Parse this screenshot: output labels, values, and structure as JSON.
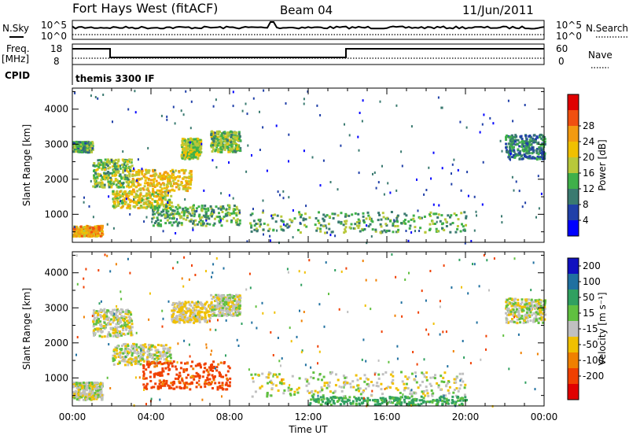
{
  "header": {
    "title": "Fort Hays West (fitACF)",
    "beam": "Beam 04",
    "date": "11/Jun/2011"
  },
  "aux": {
    "nsky_label": "N.Sky",
    "nsky_ticks": [
      "10^5",
      "10^0"
    ],
    "nsearch_label": "N.Search",
    "nsearch_ticks": [
      "10^5",
      "10^0"
    ],
    "freq_label": "Freq.",
    "freq_unit": "[MHz]",
    "freq_ticks": [
      "18",
      "8"
    ],
    "nave_label": "Nave",
    "nave_ticks": [
      "60",
      "0"
    ],
    "cpid_label": "CPID",
    "cpid_value": "themis 3300 IF"
  },
  "chart_data": [
    {
      "type": "heatmap",
      "name": "power",
      "xlabel": "",
      "ylabel": "Slant Range [km]",
      "ylim": [
        200,
        4600
      ],
      "yticks": [
        "1000",
        "2000",
        "3000",
        "4000"
      ],
      "xlim": [
        0,
        24
      ],
      "xticks": [
        "00:00",
        "04:00",
        "08:00",
        "12:00",
        "16:00",
        "20:00",
        "00:00"
      ],
      "colorbar": {
        "label": "Power [dB]",
        "ticks": [
          "4",
          "8",
          "12",
          "16",
          "20",
          "24",
          "28"
        ],
        "colors": [
          "#0000ff",
          "#2040a8",
          "#3a7a70",
          "#3fb04a",
          "#b8c83a",
          "#f0c000",
          "#f39a10",
          "#f05010",
          "#e00000"
        ]
      },
      "echo_regions": [
        {
          "t": [
            0.0,
            1.5
          ],
          "range": [
            400,
            700
          ],
          "level": 22
        },
        {
          "t": [
            0.0,
            1.0
          ],
          "range": [
            2800,
            3100
          ],
          "level": 10
        },
        {
          "t": [
            1.0,
            3.0
          ],
          "range": [
            1800,
            2600
          ],
          "level": 14
        },
        {
          "t": [
            2.0,
            5.0
          ],
          "range": [
            1200,
            1700
          ],
          "level": 18
        },
        {
          "t": [
            3.0,
            6.0
          ],
          "range": [
            1700,
            2300
          ],
          "level": 20
        },
        {
          "t": [
            4.0,
            8.5
          ],
          "range": [
            700,
            1300
          ],
          "level": 12
        },
        {
          "t": [
            5.5,
            6.5
          ],
          "range": [
            2600,
            3200
          ],
          "level": 16
        },
        {
          "t": [
            7.0,
            8.5
          ],
          "range": [
            2800,
            3400
          ],
          "level": 14
        },
        {
          "t": [
            9.0,
            20.0
          ],
          "range": [
            500,
            1100
          ],
          "level": 12
        },
        {
          "t": [
            22.0,
            24.0
          ],
          "range": [
            2600,
            3300
          ],
          "level": 8
        }
      ]
    },
    {
      "type": "heatmap",
      "name": "velocity",
      "xlabel": "Time UT",
      "ylabel": "Slant Range [km]",
      "ylim": [
        200,
        4600
      ],
      "yticks": [
        "1000",
        "2000",
        "3000",
        "4000"
      ],
      "xlim": [
        0,
        24
      ],
      "xticks": [
        "00:00",
        "04:00",
        "08:00",
        "12:00",
        "16:00",
        "20:00",
        "00:00"
      ],
      "colorbar": {
        "label": "Velocity [m s⁻¹]",
        "ticks": [
          "200",
          "100",
          "50",
          "15",
          "-15",
          "-50",
          "-100",
          "-200"
        ],
        "colors": [
          "#1010c0",
          "#2070a0",
          "#30a060",
          "#60c040",
          "#c0c0c0",
          "#f0c000",
          "#f08000",
          "#f04000",
          "#e00000"
        ]
      },
      "echo_regions": [
        {
          "t": [
            0.0,
            1.5
          ],
          "range": [
            400,
            900
          ],
          "level": 0
        },
        {
          "t": [
            1.0,
            3.0
          ],
          "range": [
            2200,
            3000
          ],
          "level": 0
        },
        {
          "t": [
            2.0,
            5.0
          ],
          "range": [
            1400,
            2000
          ],
          "level": 0
        },
        {
          "t": [
            3.5,
            8.0
          ],
          "range": [
            700,
            1500
          ],
          "level": -120
        },
        {
          "t": [
            5.0,
            7.0
          ],
          "range": [
            2600,
            3200
          ],
          "level": -20
        },
        {
          "t": [
            7.0,
            8.5
          ],
          "range": [
            2800,
            3400
          ],
          "level": 0
        },
        {
          "t": [
            9.0,
            20.0
          ],
          "range": [
            500,
            1200
          ],
          "level": 0
        },
        {
          "t": [
            12.0,
            20.0
          ],
          "range": [
            250,
            500
          ],
          "level": 60
        },
        {
          "t": [
            22.0,
            24.0
          ],
          "range": [
            2600,
            3300
          ],
          "level": 0
        }
      ]
    }
  ],
  "colors": {
    "frame": "#000000",
    "background": "#ffffff"
  }
}
